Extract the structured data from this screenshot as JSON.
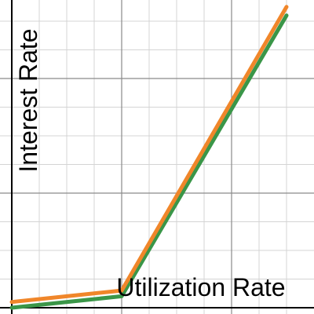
{
  "chart_data": {
    "type": "line",
    "xlabel": "Utilization Rate",
    "ylabel": "Interest Rate",
    "xlim": [
      0,
      1.1
    ],
    "ylim": [
      0,
      1.1
    ],
    "grid": true,
    "series": [
      {
        "color": "#3a9648",
        "x": [
          0,
          0.4,
          1.0
        ],
        "y": [
          0.0,
          0.04,
          1.02
        ]
      },
      {
        "color": "#f0862a",
        "x": [
          0,
          0.4,
          1.0
        ],
        "y": [
          0.02,
          0.06,
          1.05
        ]
      }
    ]
  }
}
